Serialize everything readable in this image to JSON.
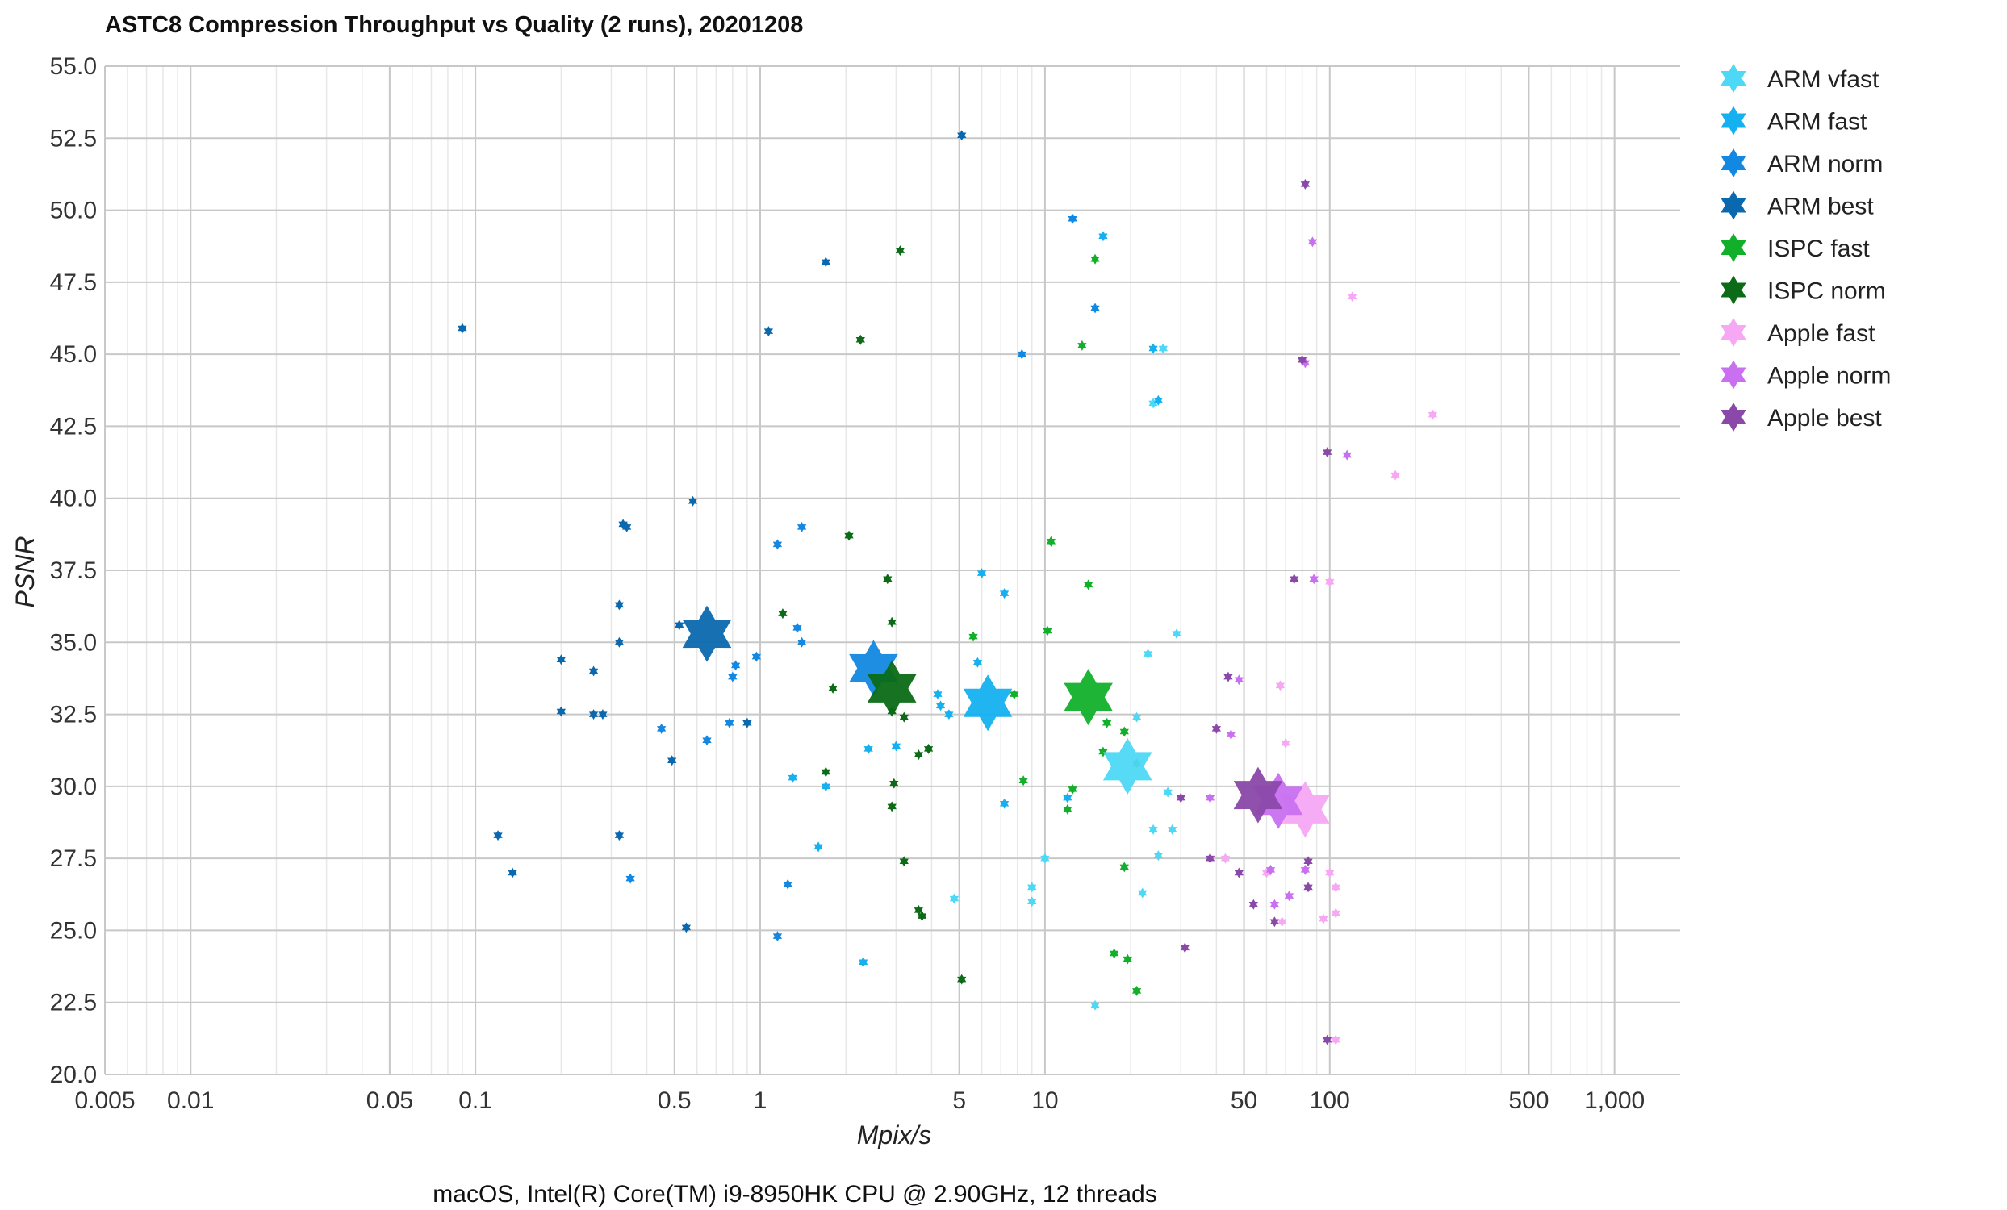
{
  "chart_data": {
    "type": "scatter",
    "title": "ASTC8 Compression Throughput vs Quality (2 runs), 20201208",
    "xlabel": "Mpix/s",
    "ylabel": "PSNR",
    "caption": "macOS, Intel(R) Core(TM) i9-8950HK CPU @ 2.90GHz, 12 threads",
    "x_scale": "log",
    "xlim": [
      0.005,
      1700
    ],
    "ylim": [
      20,
      55
    ],
    "grid": true,
    "legend_position": "outside-right-top",
    "x_ticks": [
      {
        "value": 0.005,
        "label": "0.005"
      },
      {
        "value": 0.01,
        "label": "0.01"
      },
      {
        "value": 0.05,
        "label": "0.05"
      },
      {
        "value": 0.1,
        "label": "0.1"
      },
      {
        "value": 0.5,
        "label": "0.5"
      },
      {
        "value": 1,
        "label": "1"
      },
      {
        "value": 5,
        "label": "5"
      },
      {
        "value": 10,
        "label": "10"
      },
      {
        "value": 50,
        "label": "50"
      },
      {
        "value": 100,
        "label": "100"
      },
      {
        "value": 500,
        "label": "500"
      },
      {
        "value": 1000,
        "label": "1,000"
      }
    ],
    "y_ticks": [
      {
        "value": 20,
        "label": "20.0"
      },
      {
        "value": 22.5,
        "label": "22.5"
      },
      {
        "value": 25,
        "label": "25.0"
      },
      {
        "value": 27.5,
        "label": "27.5"
      },
      {
        "value": 30,
        "label": "30.0"
      },
      {
        "value": 32.5,
        "label": "32.5"
      },
      {
        "value": 35,
        "label": "35.0"
      },
      {
        "value": 37.5,
        "label": "37.5"
      },
      {
        "value": 40,
        "label": "40.0"
      },
      {
        "value": 42.5,
        "label": "42.5"
      },
      {
        "value": 45,
        "label": "45.0"
      },
      {
        "value": 47.5,
        "label": "47.5"
      },
      {
        "value": 50,
        "label": "50.0"
      },
      {
        "value": 52.5,
        "label": "52.5"
      },
      {
        "value": 55,
        "label": "55.0"
      }
    ],
    "series": [
      {
        "name": "ARM vfast",
        "color": "#4dd8f5",
        "average": [
          19.5,
          30.7
        ],
        "points": [
          [
            24,
            43.3
          ],
          [
            26,
            45.2
          ],
          [
            23,
            34.6
          ],
          [
            29,
            35.3
          ],
          [
            21,
            32.4
          ],
          [
            27,
            29.8
          ],
          [
            24,
            28.5
          ],
          [
            28,
            28.5
          ],
          [
            25,
            27.6
          ],
          [
            22,
            26.3
          ],
          [
            10,
            27.5
          ],
          [
            9,
            26.5
          ],
          [
            9,
            26.0
          ],
          [
            4.8,
            26.1
          ],
          [
            15,
            22.4
          ]
        ]
      },
      {
        "name": "ARM fast",
        "color": "#14b0f0",
        "average": [
          6.3,
          32.9
        ],
        "points": [
          [
            16,
            49.1
          ],
          [
            24,
            45.2
          ],
          [
            25,
            43.4
          ],
          [
            6,
            37.4
          ],
          [
            7.2,
            36.7
          ],
          [
            5.8,
            34.3
          ],
          [
            4.2,
            33.2
          ],
          [
            4.3,
            32.8
          ],
          [
            4.6,
            32.5
          ],
          [
            3,
            31.4
          ],
          [
            2.4,
            31.3
          ],
          [
            12,
            29.6
          ],
          [
            7.2,
            29.4
          ],
          [
            1.7,
            30.0
          ],
          [
            1.3,
            30.3
          ],
          [
            1.6,
            27.9
          ],
          [
            2.3,
            23.9
          ]
        ]
      },
      {
        "name": "ARM norm",
        "color": "#1288e2",
        "average": [
          2.5,
          34.1
        ],
        "points": [
          [
            12.5,
            49.7
          ],
          [
            15,
            46.6
          ],
          [
            8.3,
            45.0
          ],
          [
            1.4,
            39.0
          ],
          [
            1.15,
            38.4
          ],
          [
            1.35,
            35.5
          ],
          [
            1.4,
            35.0
          ],
          [
            0.82,
            34.2
          ],
          [
            0.97,
            34.5
          ],
          [
            0.8,
            33.8
          ],
          [
            0.65,
            31.6
          ],
          [
            0.45,
            32.0
          ],
          [
            0.78,
            32.2
          ],
          [
            1.25,
            26.6
          ],
          [
            0.35,
            26.8
          ],
          [
            1.15,
            24.8
          ]
        ]
      },
      {
        "name": "ARM best",
        "color": "#0a68ae",
        "average": [
          0.65,
          35.3
        ],
        "points": [
          [
            5.1,
            52.6
          ],
          [
            1.7,
            48.2
          ],
          [
            1.07,
            45.8
          ],
          [
            0.09,
            45.9
          ],
          [
            0.58,
            39.9
          ],
          [
            0.33,
            39.1
          ],
          [
            0.34,
            39.0
          ],
          [
            0.32,
            36.3
          ],
          [
            0.32,
            35.0
          ],
          [
            0.52,
            35.6
          ],
          [
            0.2,
            34.4
          ],
          [
            0.26,
            34.0
          ],
          [
            0.2,
            32.6
          ],
          [
            0.26,
            32.5
          ],
          [
            0.28,
            32.5
          ],
          [
            0.9,
            32.2
          ],
          [
            0.49,
            30.9
          ],
          [
            0.12,
            28.3
          ],
          [
            0.135,
            27.0
          ],
          [
            0.32,
            28.3
          ],
          [
            0.55,
            25.1
          ]
        ]
      },
      {
        "name": "ISPC fast",
        "color": "#12b02a",
        "average": [
          14.2,
          33.1
        ],
        "points": [
          [
            15,
            48.3
          ],
          [
            13.5,
            45.3
          ],
          [
            10.5,
            38.5
          ],
          [
            14.2,
            37.0
          ],
          [
            5.6,
            35.2
          ],
          [
            10.2,
            35.4
          ],
          [
            7.8,
            33.2
          ],
          [
            16.5,
            32.2
          ],
          [
            19,
            31.9
          ],
          [
            16,
            31.2
          ],
          [
            21,
            30.8
          ],
          [
            8.4,
            30.2
          ],
          [
            12.5,
            29.9
          ],
          [
            12,
            29.2
          ],
          [
            19,
            27.2
          ],
          [
            17.5,
            24.2
          ],
          [
            19.5,
            24.0
          ],
          [
            21,
            22.9
          ]
        ]
      },
      {
        "name": "ISPC norm",
        "color": "#0b6b16",
        "average": [
          2.9,
          33.4
        ],
        "points": [
          [
            3.1,
            48.6
          ],
          [
            2.25,
            45.5
          ],
          [
            2.05,
            38.7
          ],
          [
            2.8,
            37.2
          ],
          [
            1.2,
            36.0
          ],
          [
            2.9,
            35.7
          ],
          [
            1.8,
            33.4
          ],
          [
            2.9,
            32.6
          ],
          [
            3.2,
            32.4
          ],
          [
            1.7,
            30.5
          ],
          [
            3.6,
            31.1
          ],
          [
            3.9,
            31.3
          ],
          [
            2.95,
            30.1
          ],
          [
            2.9,
            29.3
          ],
          [
            3.2,
            27.4
          ],
          [
            3.7,
            25.5
          ],
          [
            3.6,
            25.7
          ],
          [
            5.1,
            23.3
          ]
        ]
      },
      {
        "name": "Apple fast",
        "color": "#f6a8f4",
        "average": [
          82,
          29.2
        ],
        "points": [
          [
            120,
            47.0
          ],
          [
            230,
            42.9
          ],
          [
            170,
            40.8
          ],
          [
            100,
            37.1
          ],
          [
            70,
            31.5
          ],
          [
            67,
            33.5
          ],
          [
            43,
            27.5
          ],
          [
            38,
            27.5
          ],
          [
            100,
            27.0
          ],
          [
            105,
            26.5
          ],
          [
            95,
            25.4
          ],
          [
            105,
            25.6
          ],
          [
            60,
            27.0
          ],
          [
            68,
            25.3
          ],
          [
            105,
            21.2
          ]
        ]
      },
      {
        "name": "Apple norm",
        "color": "#c870f0",
        "average": [
          66,
          29.5
        ],
        "points": [
          [
            87,
            48.9
          ],
          [
            82,
            44.7
          ],
          [
            115,
            41.5
          ],
          [
            88,
            37.2
          ],
          [
            48,
            33.7
          ],
          [
            45,
            31.8
          ],
          [
            38,
            29.6
          ],
          [
            62,
            27.1
          ],
          [
            82,
            27.1
          ],
          [
            72,
            26.2
          ],
          [
            64,
            25.9
          ]
        ]
      },
      {
        "name": "Apple best",
        "color": "#8a48a8",
        "average": [
          56,
          29.7
        ],
        "points": [
          [
            82,
            50.9
          ],
          [
            80,
            44.8
          ],
          [
            98,
            41.6
          ],
          [
            75,
            37.2
          ],
          [
            44,
            33.8
          ],
          [
            40,
            32.0
          ],
          [
            30,
            29.6
          ],
          [
            48,
            27.0
          ],
          [
            38,
            27.5
          ],
          [
            84,
            27.4
          ],
          [
            84,
            26.5
          ],
          [
            54,
            25.9
          ],
          [
            64,
            25.3
          ],
          [
            31,
            24.4
          ],
          [
            98,
            21.2
          ]
        ]
      }
    ]
  }
}
